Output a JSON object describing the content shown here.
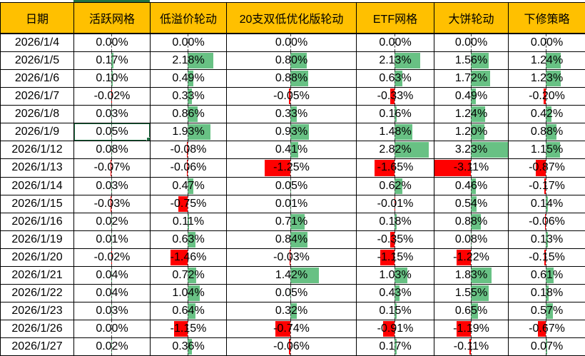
{
  "table": {
    "header": {
      "columns": [
        {
          "id": "date",
          "label": "日期"
        },
        {
          "id": "active-grid",
          "label": "活跃网格"
        },
        {
          "id": "low-premium-rotation",
          "label": "低溢价轮动"
        },
        {
          "id": "20-double-low-optimized-rotation",
          "label": "20支双低优化版轮动"
        },
        {
          "id": "etf-grid",
          "label": "ETF网格"
        },
        {
          "id": "big-pie-rotation",
          "label": "大饼轮动"
        },
        {
          "id": "downward-revision-strategy",
          "label": "下修策略"
        }
      ]
    },
    "rows": [
      {
        "date": "2026/1/4",
        "values": [
          0.0,
          0.0,
          0.0,
          0.0,
          0.0,
          0.0
        ]
      },
      {
        "date": "2026/1/5",
        "values": [
          0.17,
          2.18,
          0.8,
          2.13,
          1.56,
          1.24
        ]
      },
      {
        "date": "2026/1/6",
        "values": [
          0.1,
          0.49,
          0.88,
          0.63,
          1.72,
          1.23
        ]
      },
      {
        "date": "2026/1/7",
        "values": [
          -0.02,
          0.33,
          -0.05,
          -0.33,
          0.49,
          -0.2
        ]
      },
      {
        "date": "2026/1/8",
        "values": [
          0.03,
          0.86,
          0.33,
          0.16,
          1.24,
          0.42
        ]
      },
      {
        "date": "2026/1/9",
        "values": [
          0.05,
          1.93,
          0.93,
          1.48,
          1.2,
          0.88
        ]
      },
      {
        "date": "2026/1/12",
        "values": [
          0.08,
          -0.08,
          0.41,
          2.82,
          3.23,
          1.15
        ]
      },
      {
        "date": "2026/1/13",
        "values": [
          -0.07,
          -0.06,
          -1.25,
          -1.65,
          -3.11,
          -0.87
        ]
      },
      {
        "date": "2026/1/14",
        "values": [
          0.03,
          0.47,
          0.05,
          0.62,
          0.46,
          -0.17
        ]
      },
      {
        "date": "2026/1/15",
        "values": [
          -0.03,
          -0.75,
          0.01,
          -0.01,
          0.54,
          0.14
        ]
      },
      {
        "date": "2026/1/16",
        "values": [
          0.02,
          0.11,
          0.71,
          0.18,
          0.88,
          -0.06
        ]
      },
      {
        "date": "2026/1/19",
        "values": [
          0.01,
          0.63,
          0.84,
          -0.35,
          0.08,
          0.13
        ]
      },
      {
        "date": "2026/1/20",
        "values": [
          -0.02,
          -1.46,
          -0.03,
          -1.15,
          -1.22,
          -0.15
        ]
      },
      {
        "date": "2026/1/21",
        "values": [
          0.04,
          0.72,
          1.42,
          1.03,
          1.83,
          0.61
        ]
      },
      {
        "date": "2026/1/22",
        "values": [
          0.04,
          1.04,
          0.05,
          0.43,
          1.55,
          0.18
        ]
      },
      {
        "date": "2026/1/23",
        "values": [
          0.03,
          0.64,
          0.32,
          0.15,
          0.65,
          0.57
        ]
      },
      {
        "date": "2026/1/26",
        "values": [
          0.0,
          -1.15,
          -0.74,
          -0.91,
          -1.19,
          -0.67
        ]
      },
      {
        "date": "2026/1/27",
        "values": [
          0.02,
          0.36,
          -0.06,
          0.17,
          -0.11,
          0.07
        ]
      }
    ],
    "value_format": {
      "decimals": 2,
      "suffix": "%"
    }
  },
  "databar": {
    "global_min": -3.11,
    "global_max": 3.23
  },
  "selection": {
    "date": "2026/1/9",
    "column": "活跃网格"
  },
  "colors": {
    "header_bg": "#FFC000",
    "positive_bar": "#68C184",
    "negative_bar": "#FF0000",
    "selection_border": "#217346",
    "grid_line": "#000000",
    "axis_dash": "#3c3c3c"
  }
}
